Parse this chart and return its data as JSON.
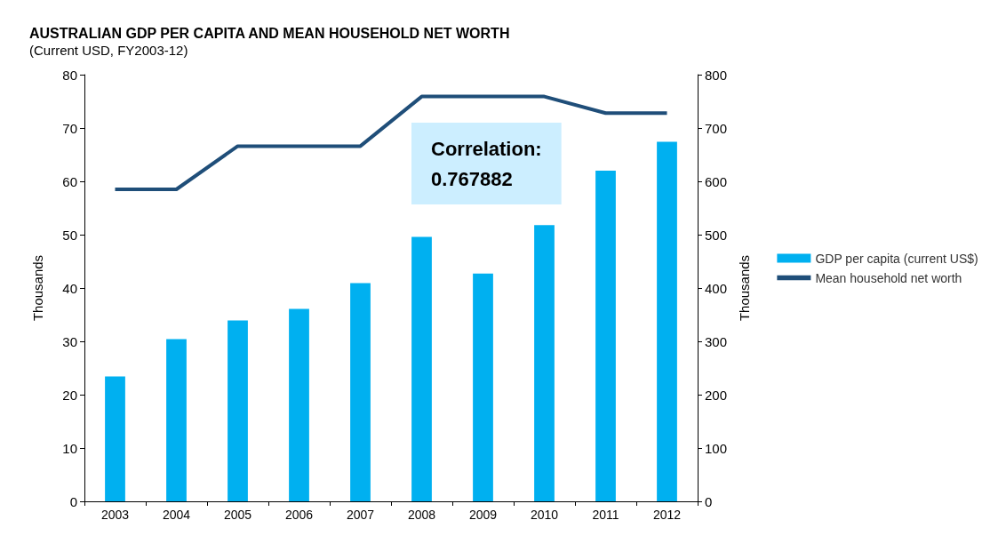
{
  "chart_data": {
    "type": "bar",
    "title": "AUSTRALIAN GDP PER CAPITA AND MEAN HOUSEHOLD NET WORTH",
    "subtitle": "(Current USD, FY2003-12)",
    "ylabel": "Thousands",
    "y2label": "Thousands",
    "categories": [
      "2003",
      "2004",
      "2005",
      "2006",
      "2007",
      "2008",
      "2009",
      "2010",
      "2011",
      "2012"
    ],
    "series": [
      {
        "name": "GDP per capita (current US$)",
        "color": "#00b0f0",
        "values": [
          23.4,
          30.4,
          33.9,
          36.1,
          40.9,
          49.6,
          42.7,
          51.8,
          62.0,
          67.4
        ]
      },
      {
        "name": "Mean household net worth",
        "type": "line",
        "axis": "y2",
        "color": "#1f4e79",
        "values": [
          585,
          585,
          666,
          666,
          666,
          759,
          759,
          759,
          728,
          728
        ]
      }
    ],
    "ylim": [
      0,
      80
    ],
    "yticks": [
      0,
      10,
      20,
      30,
      40,
      50,
      60,
      70,
      80
    ],
    "y2lim": [
      0,
      800
    ],
    "y2ticks": [
      0,
      100,
      200,
      300,
      400,
      500,
      600,
      700,
      800
    ],
    "annotations": [
      "Correlation:\n0.767882"
    ],
    "grid": false,
    "legend": "right",
    "marker": "none",
    "line_style": "solid"
  }
}
